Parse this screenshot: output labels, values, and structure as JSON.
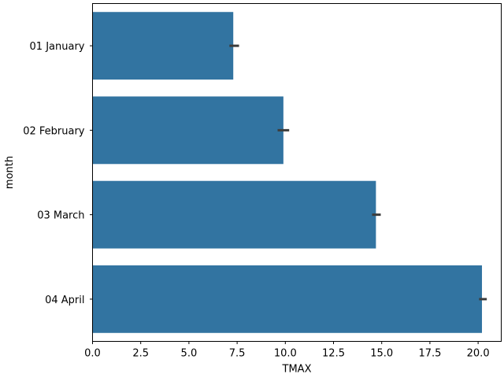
{
  "chart_data": {
    "type": "bar",
    "orientation": "horizontal",
    "title": "",
    "xlabel": "TMAX",
    "ylabel": "month",
    "categories": [
      "01 January",
      "02 February",
      "03 March",
      "04 April"
    ],
    "series": [
      {
        "values": [
          7.3,
          9.9,
          14.7,
          20.2
        ],
        "error_low": [
          7.1,
          9.6,
          14.5,
          20.05
        ],
        "error_high": [
          7.6,
          10.2,
          14.95,
          20.45
        ]
      }
    ],
    "xlim": [
      0,
      21.2
    ],
    "xticks": [
      0.0,
      2.5,
      5.0,
      7.5,
      10.0,
      12.5,
      15.0,
      17.5,
      20.0
    ],
    "xtick_labels": [
      "0.0",
      "2.5",
      "5.0",
      "7.5",
      "10.0",
      "12.5",
      "15.0",
      "17.5",
      "20.0"
    ],
    "grid": false,
    "legend": "none",
    "colors": {
      "bar": "#3274a1",
      "errorbar": "#3d3d3d"
    }
  }
}
